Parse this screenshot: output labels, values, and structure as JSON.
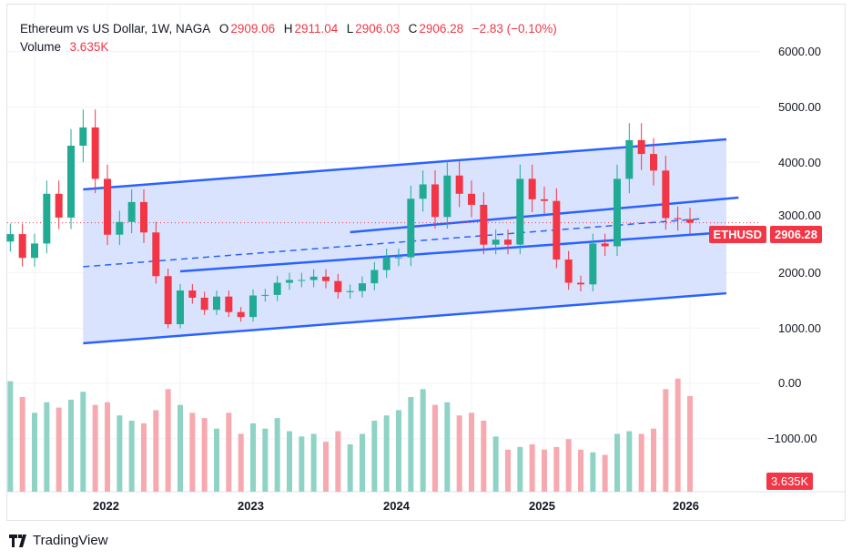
{
  "header": {
    "title": "Ethereum vs US Dollar, 1W, NAGA",
    "open_label": "O",
    "open": "2909.06",
    "high_label": "H",
    "high": "2911.04",
    "low_label": "L",
    "low": "2906.03",
    "close_label": "C",
    "close": "2906.28",
    "change": "−2.83 (−0.10%)",
    "volume_label": "Volume",
    "volume": "3.635K"
  },
  "price_tag": {
    "symbol": "ETHUSD",
    "price": "2906.28"
  },
  "volume_tag": "3.635K",
  "price_axis": [
    "6000.00",
    "5000.00",
    "4000.00",
    "3000.00",
    "2000.00",
    "1000.00",
    "0.00",
    "−1000.00"
  ],
  "time_axis": [
    "2022",
    "2023",
    "2024",
    "2025",
    "2026"
  ],
  "brand": "TradingView",
  "colors": {
    "up": "#22ab94",
    "down": "#f23645",
    "channel": "#2962ff",
    "channel_fill": "#d6e0fd"
  },
  "chart_data": {
    "type": "candlestick",
    "interval": "1W",
    "ylim": [
      -1400,
      6400
    ],
    "times": [
      "2021-05",
      "2021-06",
      "2021-07",
      "2021-08",
      "2021-09",
      "2021-10",
      "2021-11",
      "2021-12",
      "2022-01",
      "2022-02",
      "2022-03",
      "2022-04",
      "2022-05",
      "2022-06",
      "2022-07",
      "2022-08",
      "2022-09",
      "2022-10",
      "2022-11",
      "2022-12",
      "2023-01",
      "2023-02",
      "2023-03",
      "2023-04",
      "2023-05",
      "2023-06",
      "2023-07",
      "2023-08",
      "2023-09",
      "2023-10",
      "2023-11",
      "2023-12",
      "2024-01",
      "2024-02",
      "2024-03",
      "2024-04",
      "2024-05",
      "2024-06",
      "2024-07",
      "2024-08",
      "2024-09",
      "2024-10",
      "2024-11",
      "2024-12",
      "2025-01",
      "2025-02",
      "2025-03",
      "2025-04",
      "2025-05",
      "2025-06",
      "2025-07",
      "2025-08",
      "2025-09",
      "2025-10",
      "2025-11",
      "2025-12",
      "2026-01"
    ],
    "close": [
      2700,
      2270,
      2530,
      3430,
      3000,
      4300,
      4630,
      3700,
      2690,
      2920,
      3280,
      2730,
      1940,
      1070,
      1680,
      1550,
      1330,
      1570,
      1290,
      1200,
      1590,
      1600,
      1820,
      1870,
      1870,
      1930,
      1850,
      1650,
      1670,
      1810,
      2050,
      2280,
      2280,
      3340,
      3600,
      3010,
      3760,
      3430,
      3230,
      2510,
      2600,
      2510,
      3700,
      3330,
      3300,
      2240,
      1820,
      1790,
      2530,
      2480,
      3700,
      4400,
      4150,
      3850,
      2990,
      2970,
      2906
    ],
    "volume_k": [
      4.2,
      3.6,
      3.0,
      3.4,
      3.2,
      3.5,
      3.8,
      3.3,
      3.4,
      2.9,
      2.7,
      2.6,
      3.1,
      3.9,
      3.3,
      3.0,
      2.8,
      2.4,
      3.0,
      2.2,
      2.6,
      2.4,
      2.8,
      2.3,
      2.1,
      2.2,
      1.9,
      2.3,
      1.8,
      2.2,
      2.7,
      2.9,
      3.1,
      3.6,
      3.9,
      3.3,
      3.4,
      2.9,
      3.0,
      2.7,
      2.1,
      1.6,
      1.7,
      1.8,
      1.6,
      1.7,
      2.0,
      1.6,
      1.5,
      1.4,
      2.2,
      2.3,
      2.2,
      2.4,
      3.9,
      4.3,
      3.635
    ],
    "channels": [
      {
        "style": "solid",
        "from": [
          "2021-11",
          "3509"
        ],
        "to": [
          "2026-04",
          "4415"
        ]
      },
      {
        "style": "solid",
        "from": [
          "2021-11",
          "725"
        ],
        "to": [
          "2026-04",
          "1630"
        ]
      },
      {
        "style": "dashed",
        "from": [
          "2021-11",
          "2110"
        ],
        "to": [
          "2026-02",
          "2980"
        ]
      },
      {
        "style": "solid",
        "from": [
          "2022-07",
          "2026"
        ],
        "to": [
          "2026-04",
          "2735"
        ]
      },
      {
        "style": "solid",
        "from": [
          "2023-09",
          "2735"
        ],
        "to": [
          "2026-05",
          "3360"
        ]
      }
    ]
  }
}
